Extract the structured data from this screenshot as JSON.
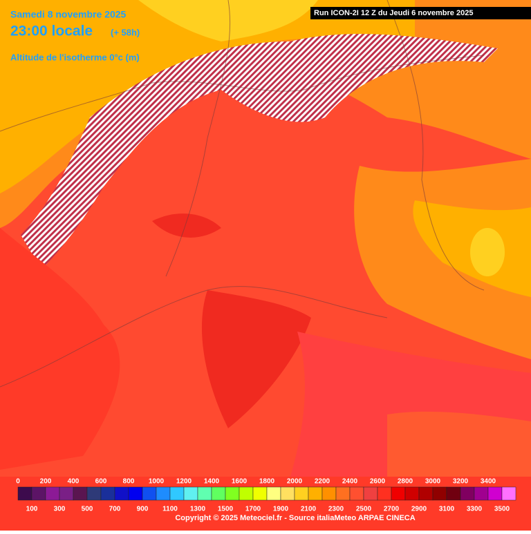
{
  "header": {
    "date": "Samedi 8 novembre 2025",
    "time": "23:00 locale",
    "offset": "(+ 58h)",
    "parameter": "Altitude de l'isotherme 0°c (m)",
    "run": "Run ICON-2I 12 Z du Jeudi 6 novembre 2025"
  },
  "legend": {
    "top_labels": [
      0,
      200,
      400,
      600,
      800,
      1000,
      1200,
      1400,
      1600,
      1800,
      2000,
      2200,
      2400,
      2600,
      2800,
      3000,
      3200,
      3400
    ],
    "bottom_labels": [
      100,
      300,
      500,
      700,
      900,
      1100,
      1300,
      1500,
      1700,
      1900,
      2100,
      2300,
      2500,
      2700,
      2900,
      3100,
      3300,
      3500
    ],
    "colors": [
      "#3d0b4d",
      "#5c1466",
      "#8c1a96",
      "#7a1f86",
      "#5a1550",
      "#2e3a78",
      "#1a2f9a",
      "#1010c8",
      "#0000f0",
      "#1050f0",
      "#1e8cff",
      "#30c8ff",
      "#60f0f0",
      "#60ffb0",
      "#60ff60",
      "#80ff20",
      "#c0ff00",
      "#f0ff00",
      "#ffff80",
      "#ffe060",
      "#ffd020",
      "#ffb000",
      "#ff9000",
      "#ff7020",
      "#ff5030",
      "#f04040",
      "#ff3020",
      "#f00000",
      "#d00000",
      "#b00000",
      "#900000",
      "#700010",
      "#800060",
      "#a00090",
      "#d000d0",
      "#ff70ff"
    ]
  },
  "footer": {
    "copyright": "Copyright © 2025 Meteociel.fr - Source italiaMeteo ARPAE CINECA"
  }
}
